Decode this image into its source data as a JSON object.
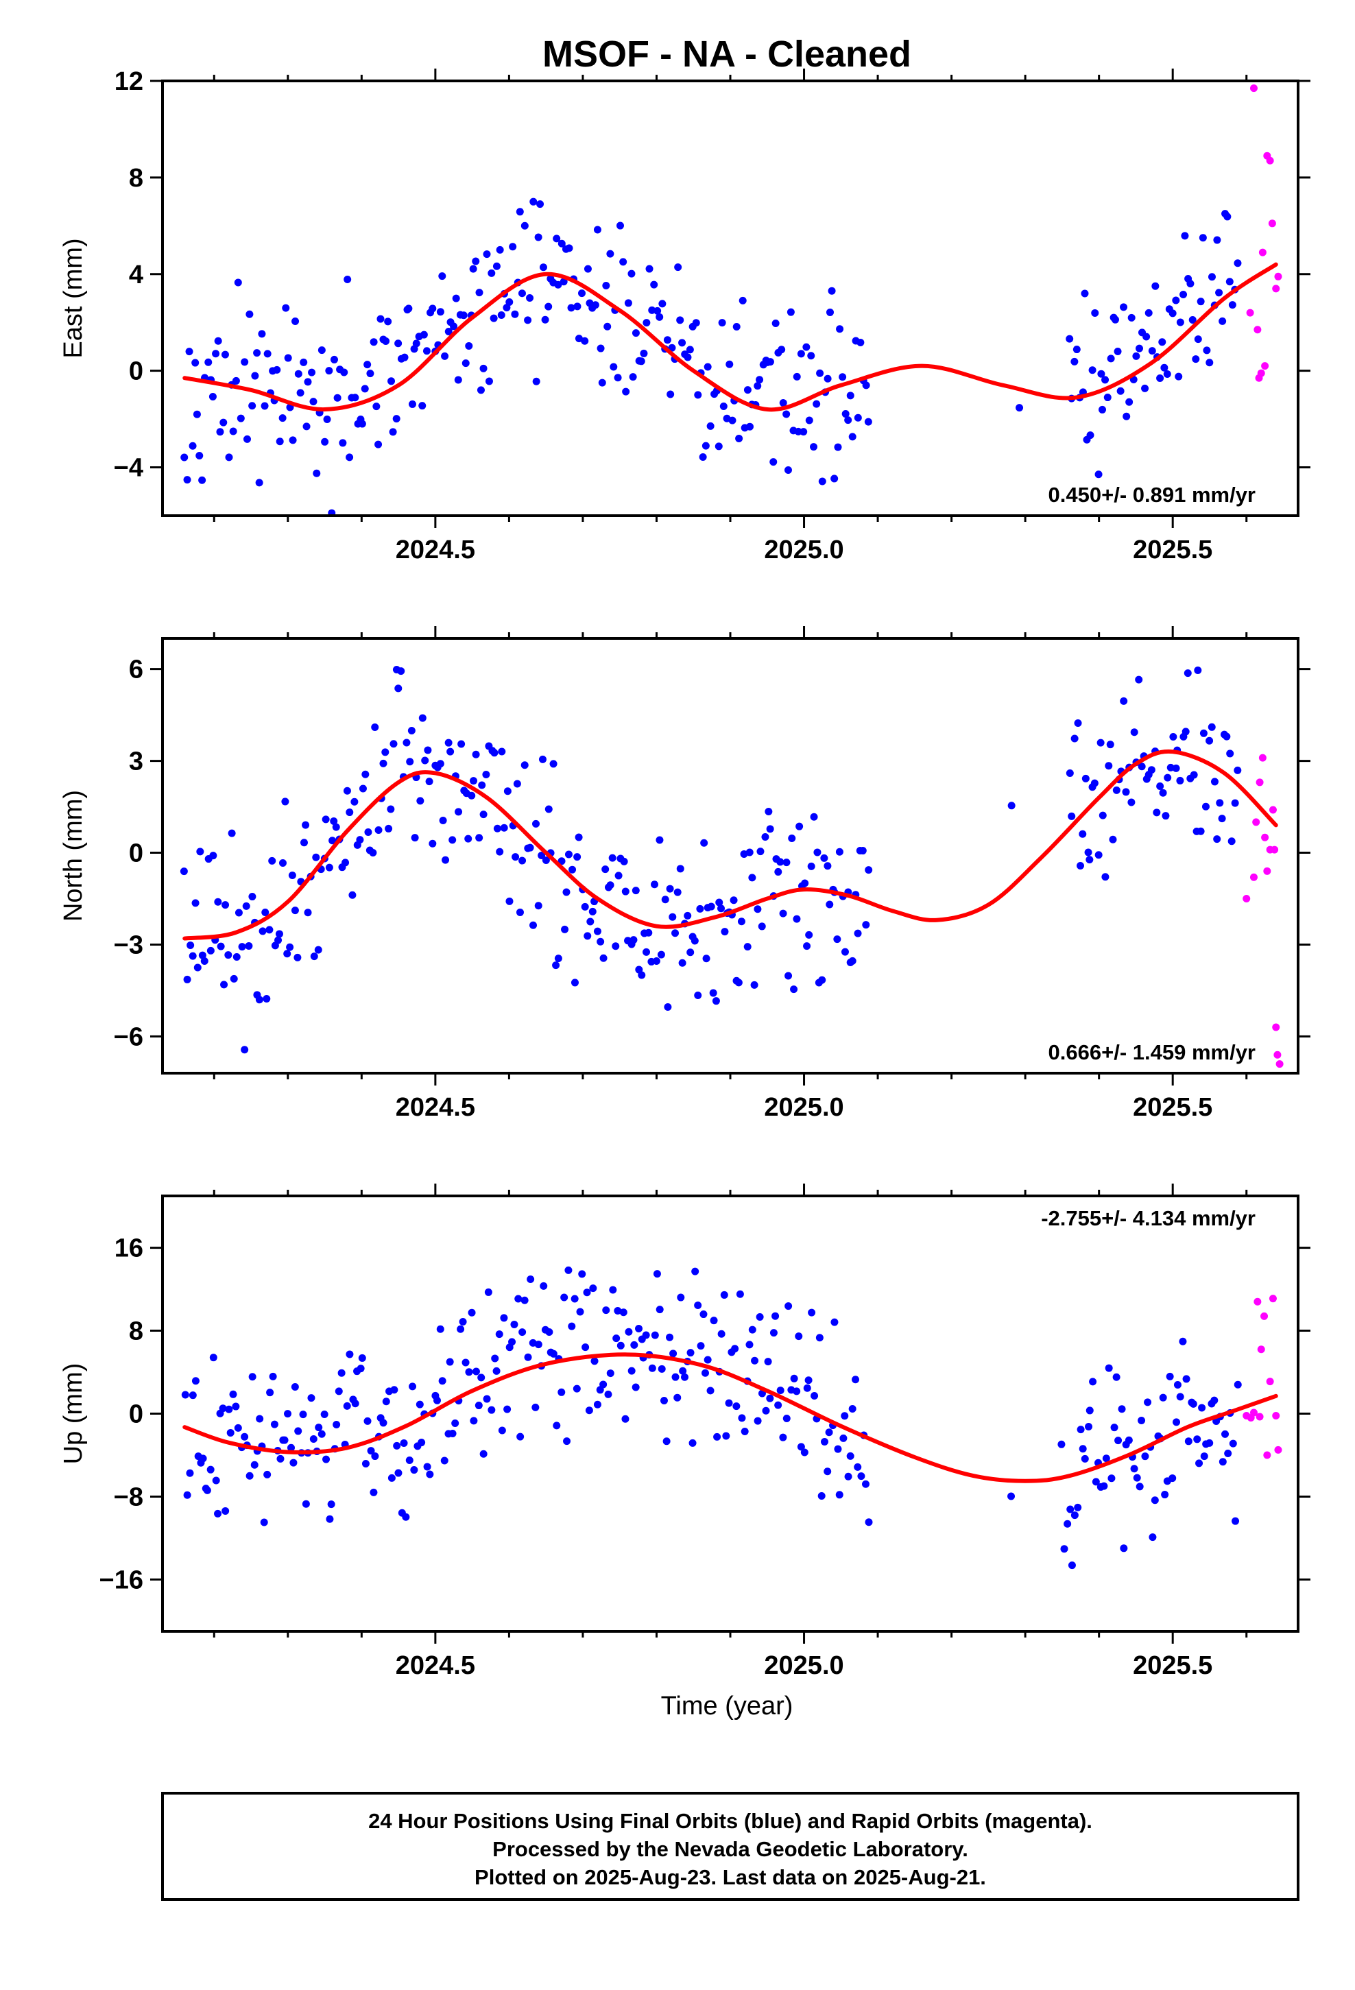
{
  "title": "MSOF  - NA - Cleaned",
  "footer_lines": [
    "24 Hour Positions Using Final Orbits (blue) and Rapid Orbits (magenta).",
    "Processed by the Nevada Geodetic Laboratory.",
    "Plotted on 2025-Aug-23. Last data on 2025-Aug-21."
  ],
  "colors": {
    "final": "#0000ff",
    "rapid": "#ff00ff",
    "fit": "#ff0000",
    "frame": "#000000"
  },
  "chart_data": [
    {
      "type": "scatter",
      "ylabel": "East (mm)",
      "xlabel": "",
      "rate_text": "0.450+/- 0.891 mm/yr",
      "rate_position": "bottom-right",
      "xlim": [
        2024.13,
        2025.67
      ],
      "ylim": [
        -6,
        12
      ],
      "xticks": [
        2024.5,
        2025.0,
        2025.5
      ],
      "xtick_labels": [
        "2024.5",
        "2025.0",
        "2025.5"
      ],
      "yticks": [
        -4,
        0,
        4,
        8,
        12
      ],
      "ytick_labels": [
        "−4",
        "0",
        "4",
        "8",
        "12"
      ],
      "fit": {
        "x": [
          2024.16,
          2024.25,
          2024.35,
          2024.45,
          2024.55,
          2024.65,
          2024.75,
          2024.85,
          2024.95,
          2025.05,
          2025.16,
          2025.27,
          2025.37,
          2025.47,
          2025.57,
          2025.64
        ],
        "y": [
          -0.3,
          -0.8,
          -1.6,
          -0.6,
          2.2,
          4.0,
          2.5,
          0.0,
          -1.6,
          -0.6,
          0.2,
          -0.6,
          -1.1,
          0.3,
          3.0,
          4.4
        ]
      },
      "series": [
        {
          "orbit": "final",
          "segments": [
            {
              "start": 2024.16,
              "end": 2025.09,
              "step": 0.0035,
              "amp": 4.0,
              "anchors": [
                [
                  2024.16,
                  -0.3
                ],
                [
                  2024.25,
                  -0.8
                ],
                [
                  2024.35,
                  -1.6
                ],
                [
                  2024.45,
                  -0.6
                ],
                [
                  2024.55,
                  2.2
                ],
                [
                  2024.65,
                  4.0
                ],
                [
                  2024.75,
                  2.5
                ],
                [
                  2024.85,
                  0.0
                ],
                [
                  2024.95,
                  -1.6
                ],
                [
                  2025.05,
                  -0.6
                ],
                [
                  2025.09,
                  -0.5
                ]
              ]
            },
            {
              "start": 2025.29,
              "end": 2025.29,
              "step": 0.01,
              "amp": 0.3,
              "anchors": [
                [
                  2025.29,
                  -1.3
                ]
              ]
            },
            {
              "start": 2025.36,
              "end": 2025.59,
              "step": 0.0035,
              "amp": 4.0,
              "anchors": [
                [
                  2025.36,
                  -1.2
                ],
                [
                  2025.42,
                  -0.4
                ],
                [
                  2025.48,
                  0.8
                ],
                [
                  2025.53,
                  2.0
                ],
                [
                  2025.59,
                  3.6
                ]
              ]
            }
          ]
        },
        {
          "orbit": "rapid",
          "points": [
            [
              2025.61,
              11.7
            ],
            [
              2025.615,
              1.7
            ],
            [
              2025.617,
              -0.3
            ],
            [
              2025.62,
              -0.1
            ],
            [
              2025.622,
              4.9
            ],
            [
              2025.625,
              0.2
            ],
            [
              2025.628,
              8.9
            ],
            [
              2025.632,
              8.7
            ],
            [
              2025.635,
              6.1
            ],
            [
              2025.64,
              3.4
            ],
            [
              2025.643,
              3.9
            ],
            [
              2025.605,
              2.4
            ]
          ]
        }
      ]
    },
    {
      "type": "scatter",
      "ylabel": "North (mm)",
      "xlabel": "",
      "rate_text": "0.666+/- 1.459 mm/yr",
      "rate_position": "bottom-right",
      "xlim": [
        2024.13,
        2025.67
      ],
      "ylim": [
        -7.2,
        7.0
      ],
      "xticks": [
        2024.5,
        2025.0,
        2025.5
      ],
      "xtick_labels": [
        "2024.5",
        "2025.0",
        "2025.5"
      ],
      "yticks": [
        -6,
        -3,
        0,
        3,
        6
      ],
      "ytick_labels": [
        "−6",
        "−3",
        "0",
        "3",
        "6"
      ],
      "fit": {
        "x": [
          2024.16,
          2024.23,
          2024.3,
          2024.38,
          2024.45,
          2024.5,
          2024.57,
          2024.65,
          2024.72,
          2024.8,
          2024.88,
          2024.95,
          2025.0,
          2025.06,
          2025.12,
          2025.18,
          2025.25,
          2025.32,
          2025.4,
          2025.45,
          2025.5,
          2025.57,
          2025.64
        ],
        "y": [
          -2.8,
          -2.6,
          -1.6,
          0.7,
          2.3,
          2.6,
          1.8,
          0.0,
          -1.5,
          -2.4,
          -2.1,
          -1.5,
          -1.2,
          -1.4,
          -1.9,
          -2.2,
          -1.7,
          -0.2,
          1.8,
          2.9,
          3.3,
          2.6,
          0.9
        ]
      },
      "series": [
        {
          "orbit": "final",
          "segments": [
            {
              "start": 2024.16,
              "end": 2025.09,
              "step": 0.0035,
              "amp": 3.4,
              "anchors": [
                [
                  2024.16,
                  -2.8
                ],
                [
                  2024.23,
                  -2.6
                ],
                [
                  2024.3,
                  -1.6
                ],
                [
                  2024.38,
                  0.7
                ],
                [
                  2024.45,
                  2.3
                ],
                [
                  2024.5,
                  2.6
                ],
                [
                  2024.57,
                  1.8
                ],
                [
                  2024.65,
                  0.0
                ],
                [
                  2024.72,
                  -1.5
                ],
                [
                  2024.8,
                  -2.4
                ],
                [
                  2024.88,
                  -2.1
                ],
                [
                  2024.95,
                  -1.5
                ],
                [
                  2025.0,
                  -1.2
                ],
                [
                  2025.06,
                  -1.4
                ],
                [
                  2025.09,
                  -1.5
                ]
              ]
            },
            {
              "start": 2025.28,
              "end": 2025.28,
              "step": 0.01,
              "amp": 0.2,
              "anchors": [
                [
                  2025.28,
                  1.5
                ]
              ]
            },
            {
              "start": 2025.36,
              "end": 2025.59,
              "step": 0.0035,
              "amp": 3.2,
              "anchors": [
                [
                  2025.36,
                  1.0
                ],
                [
                  2025.42,
                  2.2
                ],
                [
                  2025.48,
                  2.9
                ],
                [
                  2025.53,
                  3.0
                ],
                [
                  2025.59,
                  2.3
                ]
              ]
            }
          ]
        },
        {
          "orbit": "rapid",
          "points": [
            [
              2025.6,
              -1.5
            ],
            [
              2025.61,
              -0.8
            ],
            [
              2025.613,
              1.0
            ],
            [
              2025.618,
              2.3
            ],
            [
              2025.622,
              3.1
            ],
            [
              2025.625,
              0.5
            ],
            [
              2025.628,
              -0.6
            ],
            [
              2025.632,
              0.1
            ],
            [
              2025.636,
              1.4
            ],
            [
              2025.64,
              -5.7
            ],
            [
              2025.642,
              -6.6
            ],
            [
              2025.645,
              -6.9
            ],
            [
              2025.638,
              0.1
            ]
          ]
        }
      ]
    },
    {
      "type": "scatter",
      "ylabel": "Up (mm)",
      "xlabel": "Time (year)",
      "rate_text": "-2.755+/- 4.134 mm/yr",
      "rate_position": "top-right",
      "xlim": [
        2024.13,
        2025.67
      ],
      "ylim": [
        -21,
        21
      ],
      "xticks": [
        2024.5,
        2025.0,
        2025.5
      ],
      "xtick_labels": [
        "2024.5",
        "2025.0",
        "2025.5"
      ],
      "yticks": [
        -16,
        -8,
        0,
        8,
        16
      ],
      "ytick_labels": [
        "−16",
        "−8",
        "0",
        "8",
        "16"
      ],
      "fit": {
        "x": [
          2024.16,
          2024.22,
          2024.3,
          2024.38,
          2024.46,
          2024.55,
          2024.65,
          2024.76,
          2024.86,
          2024.95,
          2025.05,
          2025.15,
          2025.23,
          2025.3,
          2025.36,
          2025.44,
          2025.52,
          2025.58,
          2025.64
        ],
        "y": [
          -1.3,
          -2.8,
          -3.7,
          -3.3,
          -1.2,
          2.2,
          4.8,
          5.7,
          4.7,
          2.2,
          -1.2,
          -4.2,
          -6.0,
          -6.5,
          -6.0,
          -4.0,
          -1.3,
          0.2,
          1.7
        ]
      },
      "series": [
        {
          "orbit": "final",
          "segments": [
            {
              "start": 2024.16,
              "end": 2025.09,
              "step": 0.0035,
              "amp": 10.0,
              "anchors": [
                [
                  2024.16,
                  -1.3
                ],
                [
                  2024.22,
                  -2.8
                ],
                [
                  2024.3,
                  -3.7
                ],
                [
                  2024.38,
                  -3.3
                ],
                [
                  2024.46,
                  -1.2
                ],
                [
                  2024.55,
                  2.2
                ],
                [
                  2024.65,
                  4.8
                ],
                [
                  2024.76,
                  5.7
                ],
                [
                  2024.86,
                  4.7
                ],
                [
                  2024.95,
                  2.2
                ],
                [
                  2025.05,
                  -1.2
                ],
                [
                  2025.09,
                  -2.0
                ]
              ]
            },
            {
              "start": 2025.28,
              "end": 2025.28,
              "step": 0.01,
              "amp": 0.5,
              "anchors": [
                [
                  2025.28,
                  -8.1
                ]
              ]
            },
            {
              "start": 2025.35,
              "end": 2025.59,
              "step": 0.0035,
              "amp": 8.5,
              "anchors": [
                [
                  2025.35,
                  -6.1
                ],
                [
                  2025.42,
                  -4.5
                ],
                [
                  2025.5,
                  -2.0
                ],
                [
                  2025.55,
                  -0.8
                ],
                [
                  2025.59,
                  0.5
                ]
              ]
            }
          ]
        },
        {
          "orbit": "rapid",
          "points": [
            [
              2025.6,
              -0.2
            ],
            [
              2025.61,
              0.1
            ],
            [
              2025.615,
              10.8
            ],
            [
              2025.618,
              -0.3
            ],
            [
              2025.62,
              6.2
            ],
            [
              2025.624,
              9.4
            ],
            [
              2025.628,
              -4.0
            ],
            [
              2025.632,
              3.1
            ],
            [
              2025.636,
              11.1
            ],
            [
              2025.64,
              -0.2
            ],
            [
              2025.643,
              -3.5
            ],
            [
              2025.606,
              -0.4
            ]
          ]
        }
      ]
    }
  ]
}
